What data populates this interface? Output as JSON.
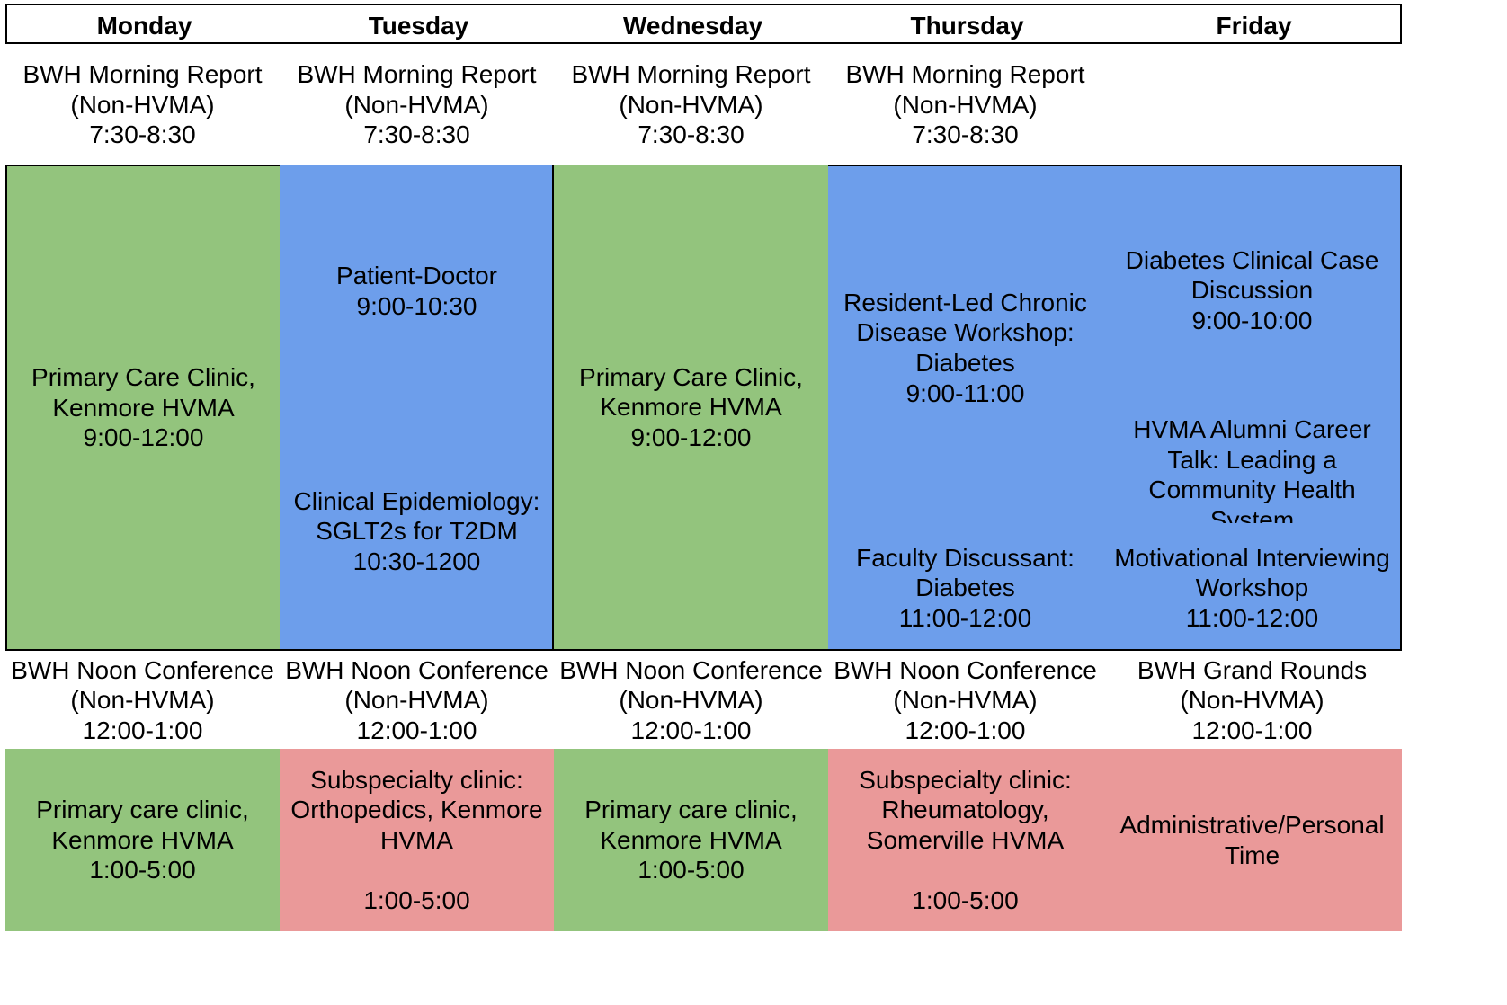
{
  "days": [
    "Monday",
    "Tuesday",
    "Wednesday",
    "Thursday",
    "Friday"
  ],
  "colors": {
    "clinic": "#93c47d",
    "didactic": "#6d9eeb",
    "subspecialty": "#ea9999"
  },
  "morning": {
    "mon": [
      "BWH Morning Report",
      "(Non-HVMA)",
      "7:30-8:30"
    ],
    "tue": [
      "BWH Morning Report",
      "(Non-HVMA)",
      "7:30-8:30"
    ],
    "wed": [
      "BWH Morning Report",
      "(Non-HVMA)",
      "7:30-8:30"
    ],
    "thu": [
      "BWH Morning Report",
      "(Non-HVMA)",
      "7:30-8:30"
    ]
  },
  "am": {
    "mon": [
      "Primary Care Clinic,",
      "Kenmore HVMA",
      "9:00-12:00"
    ],
    "tue_1": [
      "Patient-Doctor",
      "9:00-10:30"
    ],
    "tue_2": [
      "Clinical Epidemiology:",
      "SGLT2s for T2DM",
      "10:30-1200"
    ],
    "wed": [
      "Primary Care Clinic,",
      "Kenmore HVMA",
      "9:00-12:00"
    ],
    "thu_1": [
      "Resident-Led Chronic",
      "Disease Workshop:",
      "Diabetes",
      "9:00-11:00"
    ],
    "thu_2": [
      "Faculty Discussant:",
      "Diabetes",
      "11:00-12:00"
    ],
    "fri_1": [
      "Diabetes Clinical Case",
      "Discussion",
      "9:00-10:00"
    ],
    "fri_2": [
      "HVMA Alumni Career",
      "Talk: Leading a",
      "Community Health",
      "System"
    ],
    "fri_3": [
      "Motivational Interviewing",
      "Workshop",
      "11:00-12:00"
    ]
  },
  "noon": {
    "mon": [
      "BWH Noon Conference",
      "(Non-HVMA)",
      "12:00-1:00"
    ],
    "tue": [
      "BWH Noon Conference",
      "(Non-HVMA)",
      "12:00-1:00"
    ],
    "wed": [
      "BWH Noon Conference",
      "(Non-HVMA)",
      "12:00-1:00"
    ],
    "thu": [
      "BWH Noon Conference",
      "(Non-HVMA)",
      "12:00-1:00"
    ],
    "fri": [
      "BWH Grand Rounds",
      "(Non-HVMA)",
      "12:00-1:00"
    ]
  },
  "pm": {
    "mon": [
      "Primary care clinic,",
      "Kenmore HVMA",
      "1:00-5:00"
    ],
    "tue": [
      "Subspecialty clinic:",
      "Orthopedics, Kenmore",
      "HVMA",
      "",
      "1:00-5:00"
    ],
    "wed": [
      "Primary care clinic,",
      "Kenmore HVMA",
      "1:00-5:00"
    ],
    "thu": [
      "Subspecialty clinic:",
      "Rheumatology,",
      "Somerville HVMA",
      "",
      "1:00-5:00"
    ],
    "fri": [
      "Administrative/Personal",
      "Time"
    ]
  }
}
